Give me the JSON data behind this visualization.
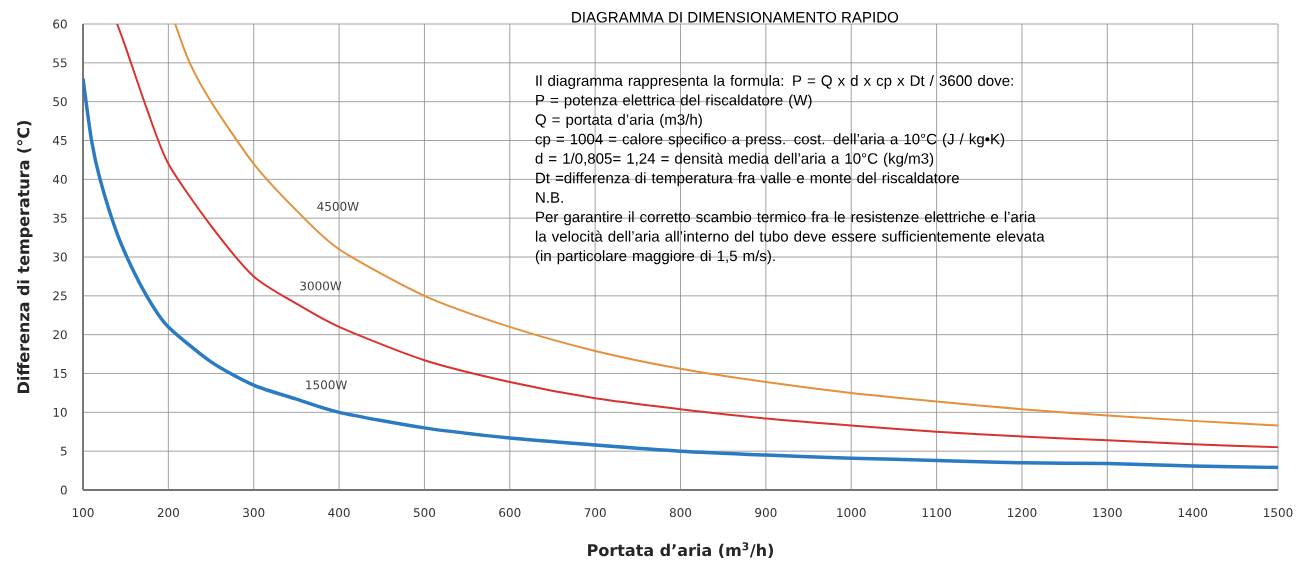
{
  "chart_data": {
    "type": "line",
    "title": "DIAGRAMMA DI DIMENSIONAMENTO RAPIDO",
    "annotations": [
      "Il diagramma rappresenta la formula: P = Q x d x cp x Dt / 3600 dove:",
      "P = potenza elettrica del riscaldatore (W)",
      "Q = portata d’aria (m3/h)",
      "cp = 1004 = calore specifico a press. cost. dell’aria a 10°C (J / kg•K)",
      "d = 1/0,805= 1,24 = densità media dell’aria a 10°C (kg/m3)",
      "Dt =differenza di temperatura fra valle e monte del riscaldatore",
      "N.B.",
      "Per garantire il corretto scambio termico fra le resistenze elettriche e l’aria",
      "la velocità dell’aria all’interno del tubo deve essere sufficientemente elevata",
      "(in particolare maggiore di 1,5 m/s)."
    ],
    "xlabel": "Portata d’aria (m$^{3}$/h)",
    "ylabel": "Differenza di temperatura (°C)",
    "xlim": [
      100,
      1500
    ],
    "ylim": [
      0,
      60
    ],
    "xticks": [
      100,
      200,
      300,
      400,
      500,
      600,
      700,
      800,
      900,
      1000,
      1100,
      1200,
      1300,
      1400,
      1500
    ],
    "yticks": [
      0,
      5,
      10,
      15,
      20,
      25,
      30,
      35,
      40,
      45,
      50,
      55,
      60
    ],
    "grid": true,
    "series": [
      {
        "name": "1500W",
        "color": "#2a7bc2",
        "x": [
          100,
          110,
          120,
          140,
          160,
          180,
          200,
          250,
          300,
          350,
          400,
          500,
          600,
          700,
          800,
          900,
          1000,
          1100,
          1200,
          1300,
          1400,
          1500
        ],
        "values": [
          53,
          45,
          40,
          33,
          28,
          24,
          21,
          16.5,
          13.5,
          11.7,
          10,
          8,
          6.7,
          5.8,
          5,
          4.5,
          4.1,
          3.8,
          3.5,
          3.4,
          3.1,
          2.9
        ]
      },
      {
        "name": "3000W",
        "color": "#d8332e",
        "x": [
          140,
          150,
          175,
          200,
          250,
          300,
          350,
          400,
          500,
          600,
          700,
          800,
          900,
          1000,
          1100,
          1200,
          1300,
          1400,
          1500
        ],
        "values": [
          60,
          57,
          49,
          42,
          34,
          27.5,
          24,
          21,
          16.7,
          13.9,
          11.8,
          10.4,
          9.2,
          8.3,
          7.5,
          6.9,
          6.4,
          5.9,
          5.5
        ]
      },
      {
        "name": "4500W",
        "color": "#e5913c",
        "x": [
          208,
          225,
          250,
          300,
          350,
          400,
          500,
          600,
          700,
          800,
          900,
          1000,
          1100,
          1200,
          1300,
          1400,
          1500
        ],
        "values": [
          60,
          55,
          50,
          42,
          36,
          31,
          25,
          21,
          17.9,
          15.6,
          13.9,
          12.5,
          11.4,
          10.4,
          9.6,
          8.9,
          8.3
        ]
      }
    ]
  }
}
